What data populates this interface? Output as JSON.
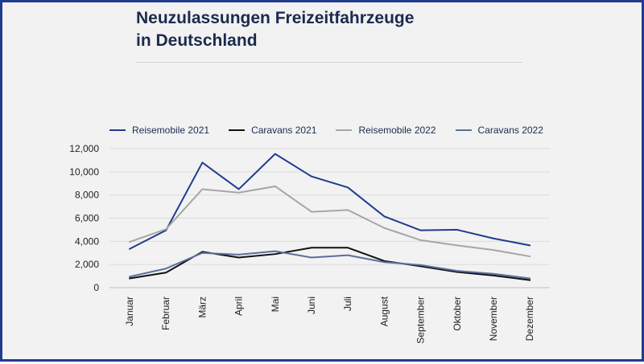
{
  "title_line1": "Neuzulassungen Freizeitfahrzeuge",
  "title_line2": "in Deutschland",
  "chart_data": {
    "type": "line",
    "title": "Neuzulassungen Freizeitfahrzeuge in Deutschland",
    "categories": [
      "Januar",
      "Februar",
      "März",
      "April",
      "Mai",
      "Juni",
      "Juli",
      "August",
      "September",
      "Oktober",
      "November",
      "Dezember"
    ],
    "ylim": [
      0,
      12000
    ],
    "yticks": [
      0,
      2000,
      4000,
      6000,
      8000,
      10000,
      12000
    ],
    "ytick_labels": [
      "0",
      "2,000",
      "4,000",
      "6,000",
      "8,000",
      "10,000",
      "12,000"
    ],
    "grid": "horizontal",
    "legend_position": "top",
    "series": [
      {
        "name": "Reisemobile 2021",
        "color": "#1f3c8f",
        "values": [
          3350,
          4950,
          10800,
          8500,
          11550,
          9600,
          8650,
          6150,
          4950,
          5000,
          4250,
          3650
        ]
      },
      {
        "name": "Caravans 2021",
        "color": "#111111",
        "values": [
          800,
          1300,
          3100,
          2600,
          2900,
          3450,
          3450,
          2300,
          1850,
          1350,
          1050,
          650
        ]
      },
      {
        "name": "Reisemobile 2022",
        "color": "#a6a6a6",
        "values": [
          3950,
          5050,
          8500,
          8200,
          8750,
          6550,
          6700,
          5150,
          4100,
          3650,
          3250,
          2700
        ]
      },
      {
        "name": "Caravans 2022",
        "color": "#5b6f9a",
        "values": [
          950,
          1650,
          3000,
          2850,
          3150,
          2600,
          2800,
          2200,
          1950,
          1450,
          1200,
          800
        ]
      }
    ]
  }
}
